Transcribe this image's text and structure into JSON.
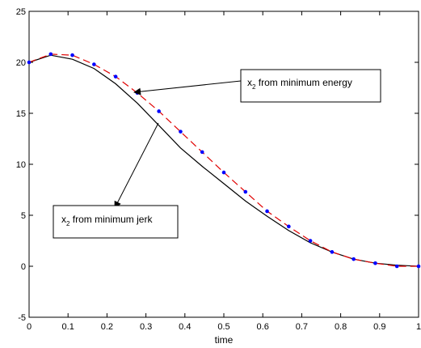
{
  "chart_data": {
    "type": "line",
    "title": "",
    "xlabel": "time",
    "ylabel": "",
    "xlim": [
      0,
      1
    ],
    "ylim": [
      -5,
      25
    ],
    "grid": false,
    "legend": "none",
    "x_ticks": [
      "0",
      "0.1",
      "0.2",
      "0.3",
      "0.4",
      "0.5",
      "0.6",
      "0.7",
      "0.8",
      "0.9",
      "1"
    ],
    "y_ticks": [
      "-5",
      "0",
      "5",
      "10",
      "15",
      "20",
      "25"
    ],
    "series": [
      {
        "style": "solid",
        "color": "#000000",
        "x": [
          0,
          0.0556,
          0.1111,
          0.1667,
          0.2222,
          0.2778,
          0.3333,
          0.3889,
          0.4444,
          0.5,
          0.5556,
          0.6111,
          0.6667,
          0.7222,
          0.7778,
          0.8333,
          0.8889,
          0.9444,
          1
        ],
        "y": [
          20.0,
          20.7,
          20.3,
          19.4,
          17.9,
          16.0,
          13.8,
          11.6,
          9.8,
          8.1,
          6.4,
          4.9,
          3.5,
          2.3,
          1.4,
          0.7,
          0.3,
          0.1,
          0.0
        ]
      },
      {
        "style": "dashed",
        "color": "#e00000",
        "x": [
          0,
          0.0556,
          0.1111,
          0.1667,
          0.2222,
          0.2778,
          0.3333,
          0.3889,
          0.4444,
          0.5,
          0.5556,
          0.6111,
          0.6667,
          0.7222,
          0.7778,
          0.8333,
          0.8889,
          0.9444,
          1
        ],
        "y": [
          20.0,
          20.8,
          20.7,
          19.8,
          18.6,
          17.0,
          15.2,
          13.2,
          11.2,
          9.2,
          7.3,
          5.4,
          3.9,
          2.5,
          1.4,
          0.7,
          0.3,
          0.0,
          0.0
        ]
      },
      {
        "style": "markers",
        "color": "#0000ff",
        "x": [
          0,
          0.0556,
          0.1111,
          0.1667,
          0.2222,
          0.2778,
          0.3333,
          0.3889,
          0.4444,
          0.5,
          0.5556,
          0.6111,
          0.6667,
          0.7222,
          0.7778,
          0.8333,
          0.8889,
          0.9444,
          1
        ],
        "y": [
          20.0,
          20.8,
          20.7,
          19.8,
          18.6,
          17.0,
          15.2,
          13.2,
          11.2,
          9.2,
          7.3,
          5.4,
          3.9,
          2.5,
          1.4,
          0.7,
          0.3,
          0.0,
          0.0
        ]
      }
    ],
    "annotations": [
      {
        "text_main": "x",
        "text_sub": "2",
        "text_rest": " from minimum energy",
        "target_x": 0.277,
        "target_y": 17.0
      },
      {
        "text_main": "x",
        "text_sub": "2",
        "text_rest": " from minimum jerk",
        "target_x": 0.305,
        "target_y": 14.0
      }
    ]
  }
}
